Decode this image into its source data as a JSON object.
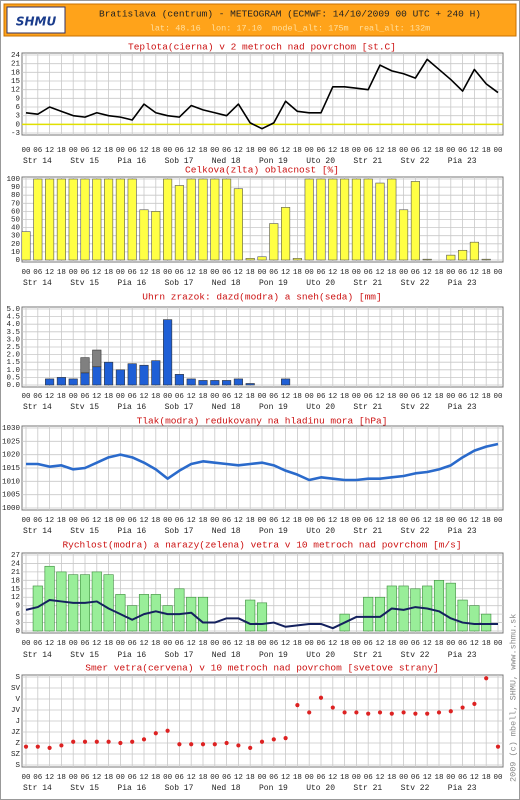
{
  "header": {
    "logo": "SHMU",
    "title": "Bratislava (centrum) - METEOGRAM (ECMWF: 14/10/2009 00 UTC + 240 H)",
    "subtitle": "lat: 48.16  lon: 17.10  model_alt: 175m  real_alt: 132m"
  },
  "credit": "2009 (c) mbell, SHMU, www.shmu.sk",
  "time_axis": {
    "categories": [
      "00",
      "06",
      "12",
      "18",
      "00",
      "06",
      "12",
      "18",
      "00",
      "06",
      "12",
      "18",
      "00",
      "06",
      "12",
      "18",
      "00",
      "06",
      "12",
      "18",
      "00",
      "06",
      "12",
      "18",
      "00",
      "06",
      "12",
      "18",
      "00",
      "06",
      "12",
      "18",
      "00",
      "06",
      "12",
      "18",
      "00",
      "06",
      "12",
      "18",
      "00"
    ],
    "days": [
      "Str 14",
      "Stv 15",
      "Pia 16",
      "Sob 17",
      "Ned 18",
      "Pon 19",
      "Uto 20",
      "Str 21",
      "Stv 22",
      "Pia 23"
    ]
  },
  "chart_data": [
    {
      "type": "line",
      "title": "Teplota(cierna) v 2 metroch nad povrchom [st.C]",
      "color": "#000000",
      "values": [
        4,
        3.5,
        6,
        4.5,
        3,
        2.5,
        4,
        3,
        2.5,
        1.5,
        7,
        4,
        3,
        2.5,
        6.5,
        5,
        4,
        3,
        7,
        0.5,
        -1.5,
        0.5,
        8,
        4.5,
        4,
        4,
        13,
        13,
        12.5,
        12,
        20.5,
        18.5,
        17.5,
        16,
        22.5,
        19,
        15.5,
        11.5,
        19,
        14,
        11
      ],
      "ylim": [
        -3,
        24
      ],
      "yticks": [
        24,
        21,
        18,
        15,
        12,
        9,
        6,
        3,
        0,
        -3
      ],
      "grid": true,
      "reference_line": {
        "value": 0,
        "color": "#e0e000"
      }
    },
    {
      "type": "bar",
      "title": "Celkova(zlta) oblacnost [%]",
      "color": "#ffff44",
      "values": [
        35,
        100,
        100,
        100,
        100,
        100,
        100,
        100,
        100,
        100,
        62,
        60,
        100,
        92,
        100,
        100,
        100,
        100,
        88,
        2,
        4,
        45,
        65,
        2,
        100,
        100,
        100,
        100,
        100,
        100,
        95,
        100,
        62,
        97,
        1,
        0,
        6,
        12,
        22,
        1,
        0
      ],
      "ylim": [
        0,
        100
      ],
      "yticks": [
        100,
        90,
        80,
        70,
        60,
        50,
        40,
        30,
        20,
        10,
        0
      ],
      "grid": true
    },
    {
      "type": "stacked_bar",
      "title": "Uhrn zrazok: dazd(modra) a sneh(seda) [mm]",
      "series": [
        {
          "color": "#1f5fd6",
          "values": [
            0,
            0,
            0.4,
            0.5,
            0.4,
            0.8,
            1.2,
            1.5,
            1,
            1.4,
            1.3,
            1.6,
            4.3,
            0.7,
            0.4,
            0.3,
            0.3,
            0.3,
            0.4,
            0.1,
            0,
            0,
            0.4,
            0,
            0,
            0,
            0,
            0,
            0,
            0,
            0,
            0,
            0,
            0,
            0,
            0,
            0,
            0,
            0,
            0,
            0
          ]
        },
        {
          "color": "#808080",
          "values": [
            0,
            0,
            0,
            0,
            0,
            1,
            1.1,
            0,
            0,
            0,
            0,
            0,
            0,
            0,
            0,
            0,
            0,
            0,
            0,
            0,
            0,
            0,
            0,
            0,
            0,
            0,
            0,
            0,
            0,
            0,
            0,
            0,
            0,
            0,
            0,
            0,
            0,
            0,
            0,
            0,
            0
          ]
        }
      ],
      "ylim": [
        0,
        5
      ],
      "yticks": [
        {
          "value": 5,
          "label": "5.0"
        },
        4.5,
        {
          "value": 4,
          "label": "4.0"
        },
        3.5,
        {
          "value": 3,
          "label": "3.0"
        },
        2.5,
        {
          "value": 2,
          "label": "2.0"
        },
        1.5,
        {
          "value": 1,
          "label": "1.0"
        },
        0.5,
        {
          "value": 0,
          "label": "0.0"
        }
      ],
      "grid": true
    },
    {
      "type": "line",
      "title": "Tlak(modra) redukovany na hladinu mora [hPa]",
      "color": "#2a6acb",
      "values": [
        1016.5,
        1016.5,
        1015.5,
        1016,
        1014.5,
        1015,
        1017,
        1019,
        1020,
        1019,
        1017,
        1014.5,
        1011,
        1014,
        1016.5,
        1017.5,
        1017,
        1016.5,
        1016,
        1016.5,
        1017,
        1016,
        1014,
        1012.5,
        1010.5,
        1011.5,
        1011,
        1010.5,
        1010.5,
        1011,
        1011,
        1011.5,
        1012,
        1013,
        1013.5,
        1014.5,
        1016,
        1019,
        1021.5,
        1023,
        1024
      ],
      "ylim": [
        1000,
        1030
      ],
      "yticks": [
        1030,
        1025,
        1020,
        1015,
        1010,
        1005,
        1000
      ],
      "grid": true
    },
    {
      "type": "combo",
      "title": "Rychlost(modra) a narazy(zelena) vetra v 10 metroch nad povrchom [m/s]",
      "series": [
        {
          "kind": "bar",
          "color": "#99ee99",
          "values": [
            0,
            16,
            23,
            21,
            20,
            20,
            21,
            20,
            13,
            9,
            13,
            13,
            9,
            15,
            12,
            12,
            0,
            0,
            0,
            11,
            10,
            0,
            0,
            0,
            0,
            0,
            0,
            6,
            0,
            12,
            12,
            16,
            16,
            15,
            16,
            18,
            17,
            11,
            9,
            6,
            0
          ]
        },
        {
          "kind": "line",
          "color": "#14215e",
          "values": [
            7.5,
            8.5,
            11,
            10.5,
            10,
            10,
            10.5,
            8,
            6,
            4,
            6,
            7,
            6,
            6,
            6.5,
            3,
            3,
            4.5,
            4.5,
            2.5,
            2.5,
            3,
            1.5,
            2,
            2.5,
            2.5,
            1,
            3,
            5,
            5,
            5,
            8,
            7.5,
            8.5,
            8,
            7,
            4.5,
            3,
            2.5,
            2.5,
            2.5
          ]
        }
      ],
      "ylim": [
        0,
        27
      ],
      "yticks": [
        27,
        24,
        21,
        18,
        15,
        12,
        9,
        6,
        3,
        0
      ],
      "grid": true
    },
    {
      "type": "scatter",
      "title": "Smer vetra(cervena) v 10 metroch nad povrchom [svetove strany]",
      "color": "#dd2222",
      "values": [
        285,
        285,
        290,
        280,
        265,
        265,
        265,
        265,
        270,
        265,
        255,
        230,
        220,
        275,
        275,
        275,
        275,
        270,
        280,
        290,
        265,
        255,
        250,
        115,
        145,
        85,
        125,
        145,
        145,
        150,
        145,
        150,
        145,
        150,
        150,
        145,
        140,
        125,
        110,
        5,
        285
      ],
      "ylim": [
        360,
        0
      ],
      "yticks": [
        {
          "value": 0,
          "label": "S"
        },
        {
          "value": 45,
          "label": "SV"
        },
        {
          "value": 90,
          "label": "V"
        },
        {
          "value": 135,
          "label": "JV"
        },
        {
          "value": 180,
          "label": "J"
        },
        {
          "value": 225,
          "label": "JZ"
        },
        {
          "value": 270,
          "label": "Z"
        },
        {
          "value": 315,
          "label": "SZ"
        },
        {
          "value": 360,
          "label": "S"
        }
      ],
      "grid": true
    }
  ]
}
